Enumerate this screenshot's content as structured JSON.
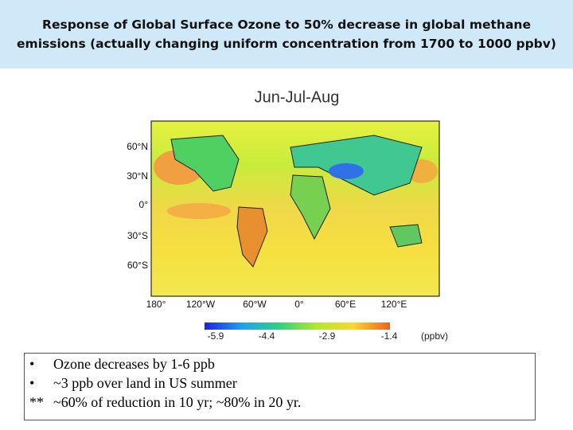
{
  "header": {
    "title_lines": [
      "Response of Global Surface Ozone to 50% decrease in global methane",
      "emissions (actually changing uniform concentration from 1700 to 1000 ppbv)"
    ]
  },
  "map": {
    "title": "Jun-Jul-Aug",
    "lat_labels": [
      "60°N",
      "30°N",
      "0°",
      "30°S",
      "60°S"
    ],
    "lon_labels": [
      "180°",
      "120°W",
      "60°W",
      "0°",
      "60°E",
      "120°E"
    ]
  },
  "colorbar": {
    "ticks": [
      "-5.9",
      "-4.4",
      "-2.9",
      "-1.4"
    ],
    "unit": "(ppbv)"
  },
  "notes": {
    "items": [
      {
        "marker": "•",
        "text": "Ozone decreases by 1-6 ppb"
      },
      {
        "marker": "•",
        "text": "~3 ppb over land in US summer"
      },
      {
        "marker": "**",
        "text": "~60% of reduction in 10 yr; ~80% in 20 yr."
      }
    ]
  }
}
